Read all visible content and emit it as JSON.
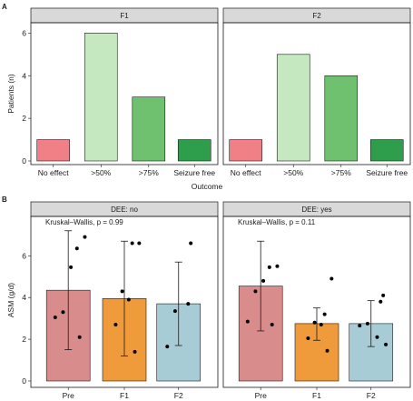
{
  "colors": {
    "No effect": "#f07f86",
    ">50%": "#c6e8c1",
    ">75%": "#6fc16f",
    "Seizure free": "#2f9e4c",
    "Pre": "#d98c8c",
    "F1": "#ef9b3b",
    "F2": "#a8ccd6"
  },
  "chart_data": [
    {
      "panel_label": "A",
      "type": "bar",
      "facets": [
        "F1",
        "F2"
      ],
      "categories": [
        "No effect",
        ">50%",
        ">75%",
        "Seizure free"
      ],
      "series": [
        {
          "facet": "F1",
          "values": [
            1,
            6,
            3,
            1
          ]
        },
        {
          "facet": "F2",
          "values": [
            1,
            5,
            4,
            1
          ]
        }
      ],
      "xlabel": "Outcome",
      "ylabel": "Patients (n)",
      "ylim": [
        0,
        6.4
      ],
      "yticks": [
        0,
        2,
        4,
        6
      ],
      "grid": false
    },
    {
      "panel_label": "B",
      "type": "bar",
      "facets": [
        "DEE: no",
        "DEE: yes"
      ],
      "categories": [
        "Pre",
        "F1",
        "F2"
      ],
      "annotations": [
        "Kruskal–Wallis, p = 0.99",
        "Kruskal–Wallis, p = 0.11"
      ],
      "series": [
        {
          "facet": "DEE: no",
          "values": [
            4.35,
            3.95,
            3.7
          ],
          "error_low": [
            1.5,
            1.2,
            1.7
          ],
          "error_high": [
            7.2,
            6.7,
            5.7
          ],
          "points": [
            [
              6.9,
              6.35,
              5.45,
              3.3,
              3.05,
              2.1
            ],
            [
              6.6,
              6.6,
              4.3,
              3.9,
              2.7,
              1.4
            ],
            [
              6.6,
              3.7,
              3.35,
              1.65
            ]
          ]
        },
        {
          "facet": "DEE: yes",
          "values": [
            4.55,
            2.75,
            2.75
          ],
          "error_low": [
            2.4,
            1.95,
            1.65
          ],
          "error_high": [
            6.7,
            3.5,
            3.85
          ],
          "points": [
            [
              5.5,
              5.45,
              4.8,
              4.3,
              2.85,
              2.7
            ],
            [
              4.9,
              3.2,
              2.8,
              2.7,
              2.05,
              1.45
            ],
            [
              4.1,
              3.8,
              2.75,
              2.65,
              2.1,
              1.75
            ]
          ]
        }
      ],
      "ylabel": "ASM (g/d)",
      "ylim": [
        0,
        7.8
      ],
      "yticks": [
        0,
        2,
        4,
        6
      ],
      "grid": false
    }
  ]
}
